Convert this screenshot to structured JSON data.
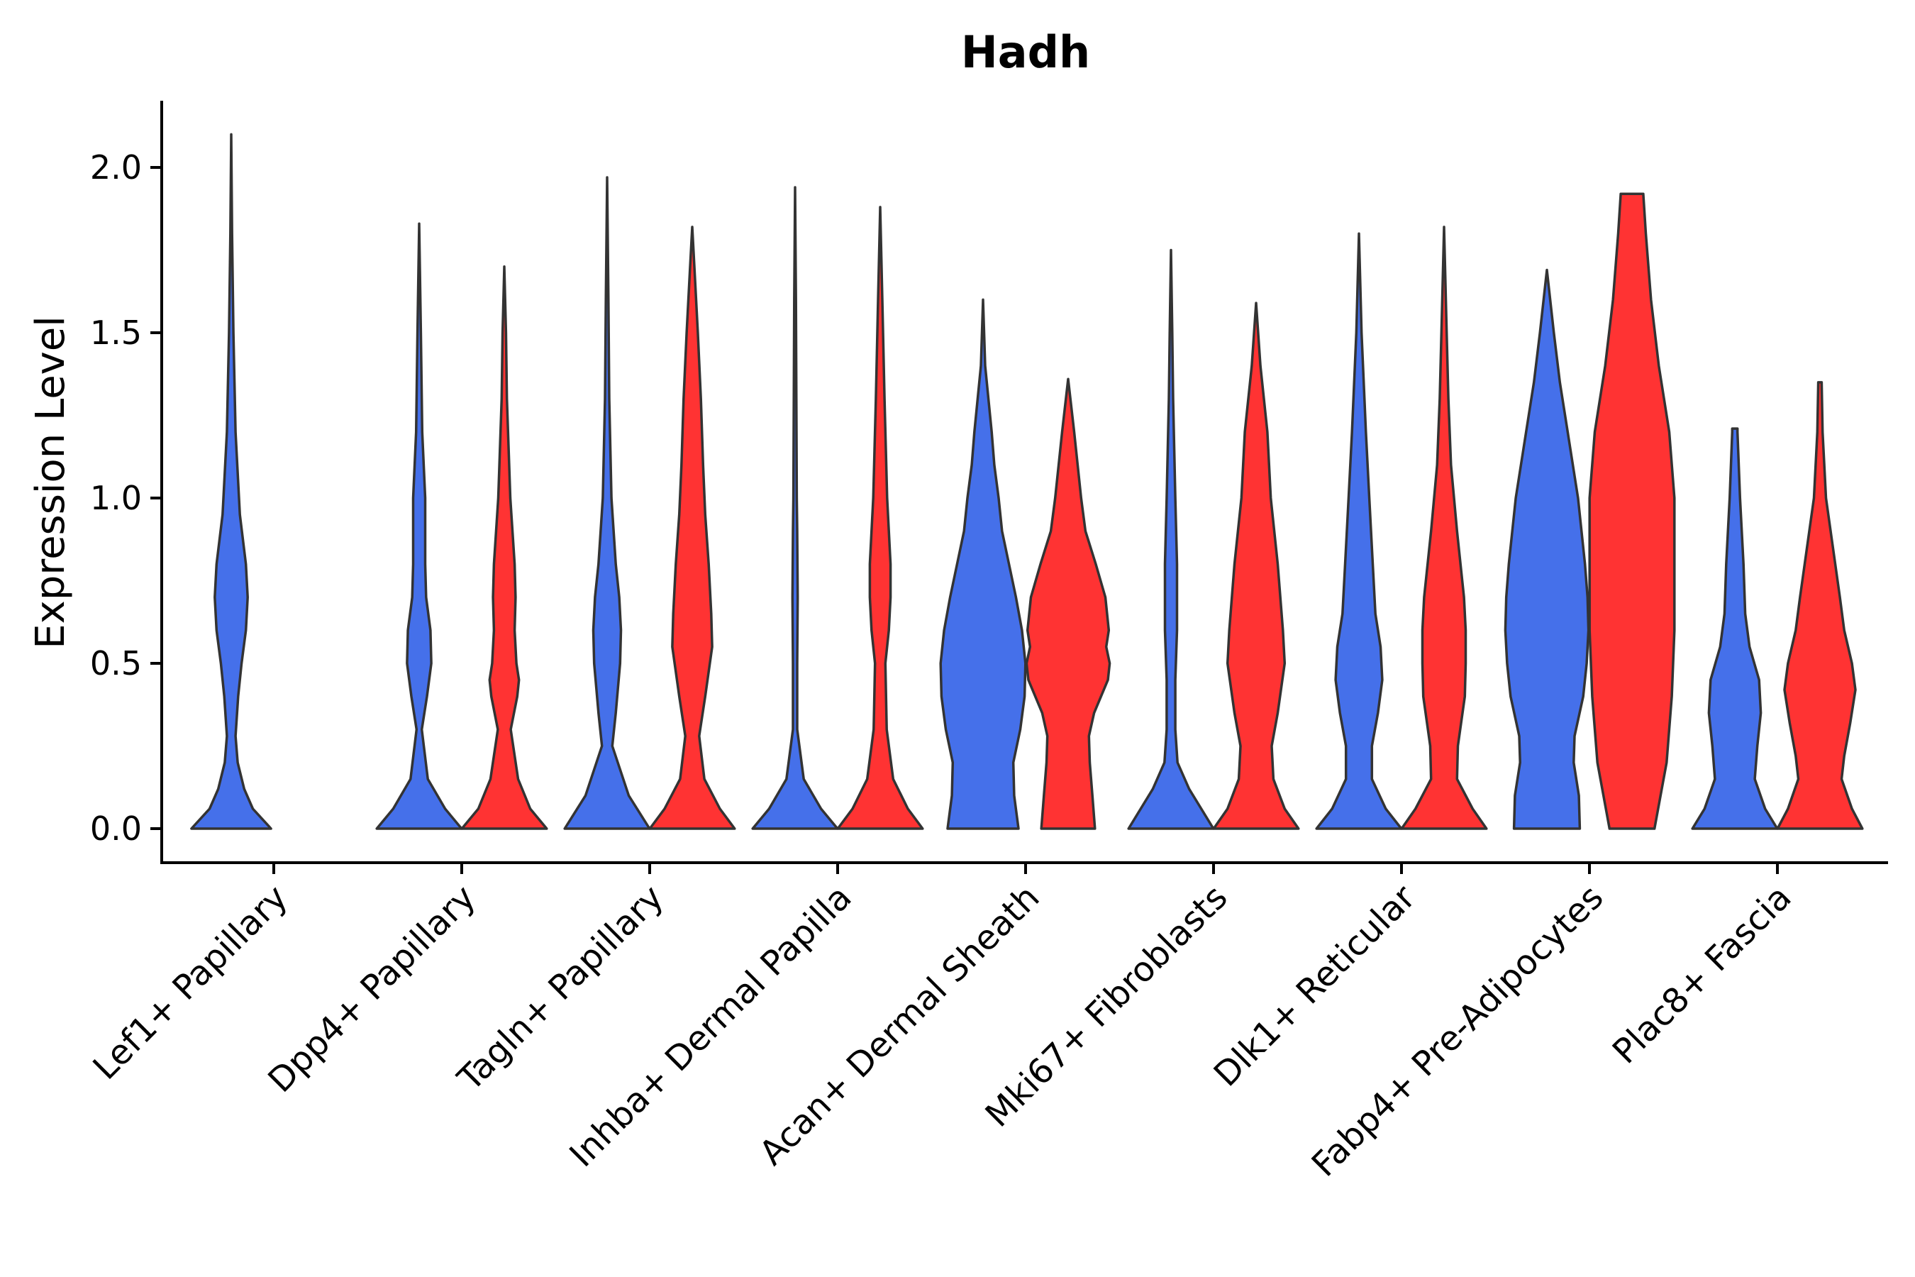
{
  "chart_data": {
    "type": "violin",
    "title": "Hadh",
    "xlabel": "",
    "ylabel": "Expression Level",
    "ylim": [
      -0.1,
      2.2
    ],
    "yticks": [
      "0.0",
      "0.5",
      "1.0",
      "1.5",
      "2.0"
    ],
    "ytick_values": [
      0.0,
      0.5,
      1.0,
      1.5,
      2.0
    ],
    "colors": {
      "blue": "#4570EA",
      "red": "#FF3333"
    },
    "categories": [
      "Lef1+ Papillary",
      "Dpp4+ Papillary",
      "Tagln+ Papillary",
      "Inhba+ Dermal Papilla",
      "Acan+ Dermal Sheath",
      "Mki67+ Fibroblasts",
      "Dlk1+ Reticular",
      "Fabp4+ Pre-Adipocytes",
      "Plac8+ Fascia"
    ],
    "violins": [
      {
        "category": 0,
        "group": "blue",
        "profile": [
          [
            0,
            0.92
          ],
          [
            0.06,
            0.5
          ],
          [
            0.12,
            0.3
          ],
          [
            0.2,
            0.15
          ],
          [
            0.28,
            0.1
          ],
          [
            0.4,
            0.16
          ],
          [
            0.5,
            0.24
          ],
          [
            0.6,
            0.34
          ],
          [
            0.7,
            0.38
          ],
          [
            0.8,
            0.34
          ],
          [
            0.95,
            0.2
          ],
          [
            1.2,
            0.1
          ],
          [
            1.5,
            0.05
          ],
          [
            1.8,
            0.02
          ],
          [
            2.1,
            0
          ]
        ]
      },
      {
        "category": 1,
        "group": "blue",
        "profile": [
          [
            0,
            0.98
          ],
          [
            0.06,
            0.6
          ],
          [
            0.15,
            0.2
          ],
          [
            0.3,
            0.06
          ],
          [
            0.4,
            0.18
          ],
          [
            0.5,
            0.28
          ],
          [
            0.6,
            0.26
          ],
          [
            0.7,
            0.16
          ],
          [
            0.8,
            0.14
          ],
          [
            1.0,
            0.14
          ],
          [
            1.2,
            0.07
          ],
          [
            1.5,
            0.04
          ],
          [
            1.83,
            0
          ]
        ]
      },
      {
        "category": 1,
        "group": "red",
        "profile": [
          [
            0,
            0.98
          ],
          [
            0.06,
            0.6
          ],
          [
            0.15,
            0.32
          ],
          [
            0.3,
            0.15
          ],
          [
            0.4,
            0.3
          ],
          [
            0.45,
            0.34
          ],
          [
            0.5,
            0.28
          ],
          [
            0.6,
            0.24
          ],
          [
            0.7,
            0.26
          ],
          [
            0.8,
            0.24
          ],
          [
            1.0,
            0.14
          ],
          [
            1.3,
            0.06
          ],
          [
            1.5,
            0.04
          ],
          [
            1.7,
            0
          ]
        ]
      },
      {
        "category": 2,
        "group": "blue",
        "profile": [
          [
            0,
            0.98
          ],
          [
            0.1,
            0.5
          ],
          [
            0.25,
            0.12
          ],
          [
            0.35,
            0.2
          ],
          [
            0.5,
            0.3
          ],
          [
            0.6,
            0.32
          ],
          [
            0.7,
            0.28
          ],
          [
            0.8,
            0.2
          ],
          [
            1.0,
            0.1
          ],
          [
            1.3,
            0.05
          ],
          [
            1.6,
            0.03
          ],
          [
            1.97,
            0
          ]
        ]
      },
      {
        "category": 2,
        "group": "red",
        "profile": [
          [
            0,
            0.98
          ],
          [
            0.06,
            0.64
          ],
          [
            0.15,
            0.28
          ],
          [
            0.28,
            0.16
          ],
          [
            0.4,
            0.3
          ],
          [
            0.55,
            0.46
          ],
          [
            0.65,
            0.44
          ],
          [
            0.8,
            0.38
          ],
          [
            0.95,
            0.3
          ],
          [
            1.1,
            0.25
          ],
          [
            1.3,
            0.2
          ],
          [
            1.5,
            0.13
          ],
          [
            1.7,
            0.05
          ],
          [
            1.82,
            0
          ]
        ]
      },
      {
        "category": 3,
        "group": "blue",
        "profile": [
          [
            0,
            0.98
          ],
          [
            0.06,
            0.6
          ],
          [
            0.15,
            0.2
          ],
          [
            0.3,
            0.05
          ],
          [
            0.5,
            0.05
          ],
          [
            0.7,
            0.06
          ],
          [
            0.9,
            0.05
          ],
          [
            1.0,
            0.04
          ],
          [
            1.3,
            0.03
          ],
          [
            1.6,
            0.02
          ],
          [
            1.94,
            0
          ]
        ]
      },
      {
        "category": 3,
        "group": "red",
        "profile": [
          [
            0,
            0.98
          ],
          [
            0.06,
            0.64
          ],
          [
            0.15,
            0.3
          ],
          [
            0.3,
            0.15
          ],
          [
            0.5,
            0.12
          ],
          [
            0.6,
            0.2
          ],
          [
            0.7,
            0.24
          ],
          [
            0.8,
            0.24
          ],
          [
            0.9,
            0.2
          ],
          [
            1.0,
            0.16
          ],
          [
            1.3,
            0.1
          ],
          [
            1.6,
            0.05
          ],
          [
            1.88,
            0
          ]
        ]
      },
      {
        "category": 4,
        "group": "blue",
        "profile": [
          [
            0,
            0.82
          ],
          [
            0.1,
            0.72
          ],
          [
            0.2,
            0.7
          ],
          [
            0.3,
            0.86
          ],
          [
            0.4,
            0.96
          ],
          [
            0.5,
            0.98
          ],
          [
            0.6,
            0.9
          ],
          [
            0.7,
            0.76
          ],
          [
            0.8,
            0.6
          ],
          [
            0.9,
            0.44
          ],
          [
            1.0,
            0.36
          ],
          [
            1.1,
            0.26
          ],
          [
            1.2,
            0.2
          ],
          [
            1.4,
            0.05
          ],
          [
            1.6,
            0
          ]
        ]
      },
      {
        "category": 4,
        "group": "red",
        "profile": [
          [
            0,
            0.62
          ],
          [
            0.1,
            0.56
          ],
          [
            0.2,
            0.5
          ],
          [
            0.28,
            0.48
          ],
          [
            0.35,
            0.6
          ],
          [
            0.45,
            0.92
          ],
          [
            0.5,
            0.96
          ],
          [
            0.55,
            0.88
          ],
          [
            0.6,
            0.94
          ],
          [
            0.7,
            0.86
          ],
          [
            0.8,
            0.64
          ],
          [
            0.9,
            0.4
          ],
          [
            1.0,
            0.3
          ],
          [
            1.2,
            0.14
          ],
          [
            1.36,
            0
          ]
        ]
      },
      {
        "category": 5,
        "group": "blue",
        "profile": [
          [
            0,
            0.98
          ],
          [
            0.06,
            0.7
          ],
          [
            0.12,
            0.42
          ],
          [
            0.2,
            0.15
          ],
          [
            0.3,
            0.1
          ],
          [
            0.45,
            0.1
          ],
          [
            0.6,
            0.14
          ],
          [
            0.8,
            0.14
          ],
          [
            1.0,
            0.1
          ],
          [
            1.3,
            0.05
          ],
          [
            1.5,
            0.03
          ],
          [
            1.75,
            0
          ]
        ]
      },
      {
        "category": 5,
        "group": "red",
        "profile": [
          [
            0,
            0.98
          ],
          [
            0.06,
            0.66
          ],
          [
            0.15,
            0.4
          ],
          [
            0.25,
            0.36
          ],
          [
            0.35,
            0.5
          ],
          [
            0.5,
            0.66
          ],
          [
            0.6,
            0.62
          ],
          [
            0.8,
            0.5
          ],
          [
            1.0,
            0.34
          ],
          [
            1.2,
            0.26
          ],
          [
            1.4,
            0.1
          ],
          [
            1.59,
            0
          ]
        ]
      },
      {
        "category": 6,
        "group": "blue",
        "profile": [
          [
            0,
            0.98
          ],
          [
            0.06,
            0.62
          ],
          [
            0.15,
            0.3
          ],
          [
            0.25,
            0.3
          ],
          [
            0.35,
            0.44
          ],
          [
            0.45,
            0.54
          ],
          [
            0.55,
            0.5
          ],
          [
            0.65,
            0.38
          ],
          [
            0.8,
            0.32
          ],
          [
            1.0,
            0.24
          ],
          [
            1.2,
            0.16
          ],
          [
            1.5,
            0.06
          ],
          [
            1.8,
            0
          ]
        ]
      },
      {
        "category": 6,
        "group": "red",
        "profile": [
          [
            0,
            0.98
          ],
          [
            0.06,
            0.66
          ],
          [
            0.15,
            0.3
          ],
          [
            0.25,
            0.32
          ],
          [
            0.4,
            0.48
          ],
          [
            0.5,
            0.5
          ],
          [
            0.6,
            0.5
          ],
          [
            0.7,
            0.46
          ],
          [
            0.9,
            0.3
          ],
          [
            1.1,
            0.16
          ],
          [
            1.3,
            0.1
          ],
          [
            1.5,
            0.06
          ],
          [
            1.82,
            0
          ]
        ]
      },
      {
        "category": 7,
        "group": "blue",
        "profile": [
          [
            0,
            0.76
          ],
          [
            0.1,
            0.74
          ],
          [
            0.2,
            0.62
          ],
          [
            0.28,
            0.64
          ],
          [
            0.4,
            0.84
          ],
          [
            0.5,
            0.92
          ],
          [
            0.6,
            0.96
          ],
          [
            0.7,
            0.94
          ],
          [
            0.8,
            0.88
          ],
          [
            1.0,
            0.72
          ],
          [
            1.2,
            0.48
          ],
          [
            1.35,
            0.3
          ],
          [
            1.5,
            0.16
          ],
          [
            1.69,
            0
          ]
        ]
      },
      {
        "category": 7,
        "group": "red",
        "profile": [
          [
            0,
            0.52
          ],
          [
            0.2,
            0.8
          ],
          [
            0.4,
            0.92
          ],
          [
            0.6,
            0.98
          ],
          [
            0.8,
            0.98
          ],
          [
            1.0,
            0.98
          ],
          [
            1.2,
            0.86
          ],
          [
            1.4,
            0.62
          ],
          [
            1.6,
            0.44
          ],
          [
            1.8,
            0.32
          ],
          [
            1.92,
            0.26
          ]
        ]
      },
      {
        "category": 8,
        "group": "blue",
        "profile": [
          [
            0,
            0.98
          ],
          [
            0.06,
            0.7
          ],
          [
            0.15,
            0.46
          ],
          [
            0.25,
            0.52
          ],
          [
            0.35,
            0.6
          ],
          [
            0.45,
            0.56
          ],
          [
            0.55,
            0.34
          ],
          [
            0.65,
            0.24
          ],
          [
            0.8,
            0.2
          ],
          [
            1.0,
            0.12
          ],
          [
            1.2,
            0.06
          ],
          [
            1.21,
            0.06
          ]
        ]
      },
      {
        "category": 8,
        "group": "red",
        "profile": [
          [
            0,
            0.98
          ],
          [
            0.06,
            0.74
          ],
          [
            0.15,
            0.5
          ],
          [
            0.22,
            0.56
          ],
          [
            0.32,
            0.7
          ],
          [
            0.42,
            0.82
          ],
          [
            0.5,
            0.74
          ],
          [
            0.6,
            0.56
          ],
          [
            0.7,
            0.46
          ],
          [
            0.85,
            0.3
          ],
          [
            1.0,
            0.14
          ],
          [
            1.2,
            0.06
          ],
          [
            1.35,
            0.04
          ]
        ]
      }
    ]
  }
}
